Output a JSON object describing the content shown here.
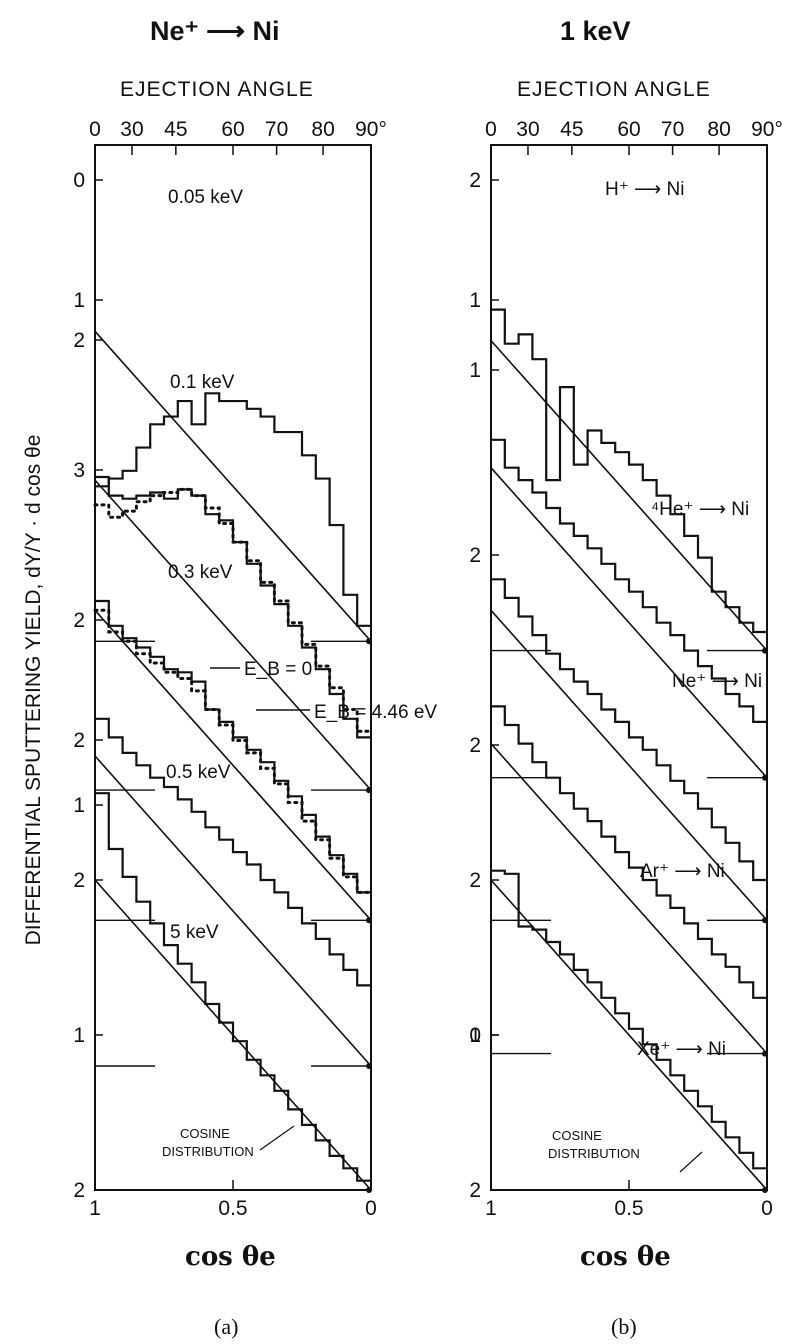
{
  "headers": {
    "left": "Ne⁺ ⟶ Ni",
    "right": "1 keV"
  },
  "axes": {
    "top_title": "EJECTION ANGLE",
    "top_ticks": [
      "0",
      "30",
      "45",
      "60",
      "70",
      "80",
      "90°"
    ],
    "top_tick_angles_deg": [
      0,
      30,
      45,
      60,
      70,
      80,
      90
    ],
    "bottom_ticks": [
      "1",
      "0.5",
      "0"
    ],
    "bottom_tick_values": [
      1,
      0.5,
      0
    ],
    "x_label": "cos θe",
    "y_label": "DIFFERENTIAL SPUTTERING YIELD, dY/Y · d cos θe"
  },
  "captions": {
    "left": "(a)",
    "right": "(b)"
  },
  "chart_data": [
    {
      "type": "line",
      "subtype": "stacked step histograms with cosine reference",
      "title": "Ne⁺ ⟶ Ni",
      "xlabel": "cos θe",
      "ylabel": "DIFFERENTIAL SPUTTERING YIELD, dY/Y · d cos θe",
      "xlim": [
        1,
        0
      ],
      "reference": "COSINE DISTRIBUTION",
      "ylabels_shown": [
        "2",
        "1",
        "2",
        "1",
        "2",
        "2",
        "3",
        "2",
        "1",
        "0"
      ],
      "series": [
        {
          "name": "0.05 keV",
          "offset": 3.54,
          "values": [
            1.0,
            1.05,
            1.1,
            1.25,
            1.4,
            1.45,
            1.55,
            1.4,
            1.6,
            1.55,
            1.55,
            1.5,
            1.45,
            1.35,
            1.35,
            1.2,
            1.05,
            0.75,
            0.3,
            0.1
          ]
        },
        {
          "name": "0.1 keV",
          "offset": 2.58,
          "values": [
            2.02,
            1.9,
            1.88,
            1.9,
            1.92,
            1.88,
            1.94,
            1.9,
            1.78,
            1.74,
            1.6,
            1.46,
            1.32,
            1.2,
            1.06,
            0.92,
            0.78,
            0.62,
            0.46,
            0.34
          ]
        },
        {
          "name": "0.1 keV E_B = 4.46 eV (dotted)",
          "offset": 2.58,
          "values": [
            1.84,
            1.76,
            1.8,
            1.86,
            1.9,
            1.92,
            1.94,
            1.9,
            1.82,
            1.72,
            1.6,
            1.48,
            1.34,
            1.22,
            1.08,
            0.94,
            0.8,
            0.66,
            0.52,
            0.38
          ]
        },
        {
          "name": "0.3 keV",
          "offset": 1.74,
          "values": [
            2.06,
            1.9,
            1.82,
            1.76,
            1.7,
            1.62,
            1.6,
            1.54,
            1.36,
            1.28,
            1.18,
            1.1,
            1.02,
            0.9,
            0.8,
            0.68,
            0.54,
            0.42,
            0.3,
            0.18
          ]
        },
        {
          "name": "0.3 keV E_B = 4.46 eV (dotted)",
          "offset": 1.74,
          "values": [
            2.0,
            1.86,
            1.8,
            1.72,
            1.66,
            1.6,
            1.56,
            1.48,
            1.36,
            1.26,
            1.16,
            1.08,
            0.98,
            0.88,
            0.76,
            0.64,
            0.52,
            0.4,
            0.28,
            0.18
          ]
        },
        {
          "name": "0.5 keV",
          "offset": 0.8,
          "values": [
            2.24,
            2.12,
            2.02,
            1.94,
            1.86,
            1.8,
            1.72,
            1.64,
            1.54,
            1.46,
            1.38,
            1.3,
            1.2,
            1.12,
            1.02,
            0.92,
            0.82,
            0.72,
            0.62,
            0.52
          ]
        },
        {
          "name": "5 keV",
          "offset": 0.0,
          "values": [
            2.56,
            2.2,
            2.02,
            1.86,
            1.72,
            1.58,
            1.46,
            1.34,
            1.2,
            1.08,
            0.96,
            0.84,
            0.74,
            0.64,
            0.52,
            0.42,
            0.32,
            0.22,
            0.14,
            0.06
          ]
        }
      ]
    },
    {
      "type": "line",
      "subtype": "stacked step histograms with cosine reference",
      "title": "1 keV",
      "xlabel": "cos θe",
      "ylabel": "DIFFERENTIAL SPUTTERING YIELD, dY/Y · d cos θe",
      "xlim": [
        1,
        0
      ],
      "reference": "COSINE DISTRIBUTION",
      "ylabels_shown": [
        "2",
        "1",
        "2",
        "2",
        "2",
        "1",
        "2",
        "1",
        "0"
      ],
      "series": [
        {
          "name": "H⁺ ⟶ Ni",
          "offset": 3.48,
          "values": [
            2.2,
            1.98,
            2.04,
            1.88,
            1.1,
            1.7,
            1.2,
            1.42,
            1.34,
            1.28,
            1.2,
            1.1,
            1.0,
            0.88,
            0.74,
            0.6,
            0.38,
            0.28,
            0.18,
            0.12
          ]
        },
        {
          "name": "⁴He⁺ ⟶ Ni",
          "offset": 2.66,
          "values": [
            2.18,
            2.0,
            1.92,
            1.84,
            1.74,
            1.64,
            1.56,
            1.48,
            1.38,
            1.28,
            1.2,
            1.1,
            1.0,
            0.92,
            0.82,
            0.72,
            0.64,
            0.54,
            0.46,
            0.36
          ]
        },
        {
          "name": "Ne⁺ ⟶ Ni",
          "offset": 1.74,
          "values": [
            2.2,
            2.08,
            1.96,
            1.84,
            1.72,
            1.62,
            1.54,
            1.46,
            1.36,
            1.28,
            1.18,
            1.1,
            1.0,
            0.9,
            0.82,
            0.72,
            0.6,
            0.5,
            0.38,
            0.26
          ]
        },
        {
          "name": "Ar⁺ ⟶ Ni",
          "offset": 0.88,
          "values": [
            2.24,
            2.12,
            2.0,
            1.88,
            1.78,
            1.68,
            1.58,
            1.5,
            1.4,
            1.3,
            1.2,
            1.12,
            1.02,
            0.94,
            0.84,
            0.74,
            0.64,
            0.56,
            0.46,
            0.36
          ]
        },
        {
          "name": "Xe⁺ ⟶ Ni",
          "offset": 0.0,
          "values": [
            2.06,
            2.04,
            1.7,
            1.68,
            1.6,
            1.52,
            1.42,
            1.34,
            1.24,
            1.14,
            1.04,
            0.94,
            0.84,
            0.74,
            0.64,
            0.54,
            0.44,
            0.34,
            0.24,
            0.14
          ]
        }
      ]
    }
  ],
  "annotations": {
    "left_energy_labels": [
      "0.05 keV",
      "0.1 keV",
      "0.3 keV",
      "0.5 keV",
      "5 keV"
    ],
    "eb0": "E_B = 0",
    "eb446": "E_B = 4.46 eV",
    "cosine_label_line1": "COSINE",
    "cosine_label_line2": "DISTRIBUTION"
  }
}
